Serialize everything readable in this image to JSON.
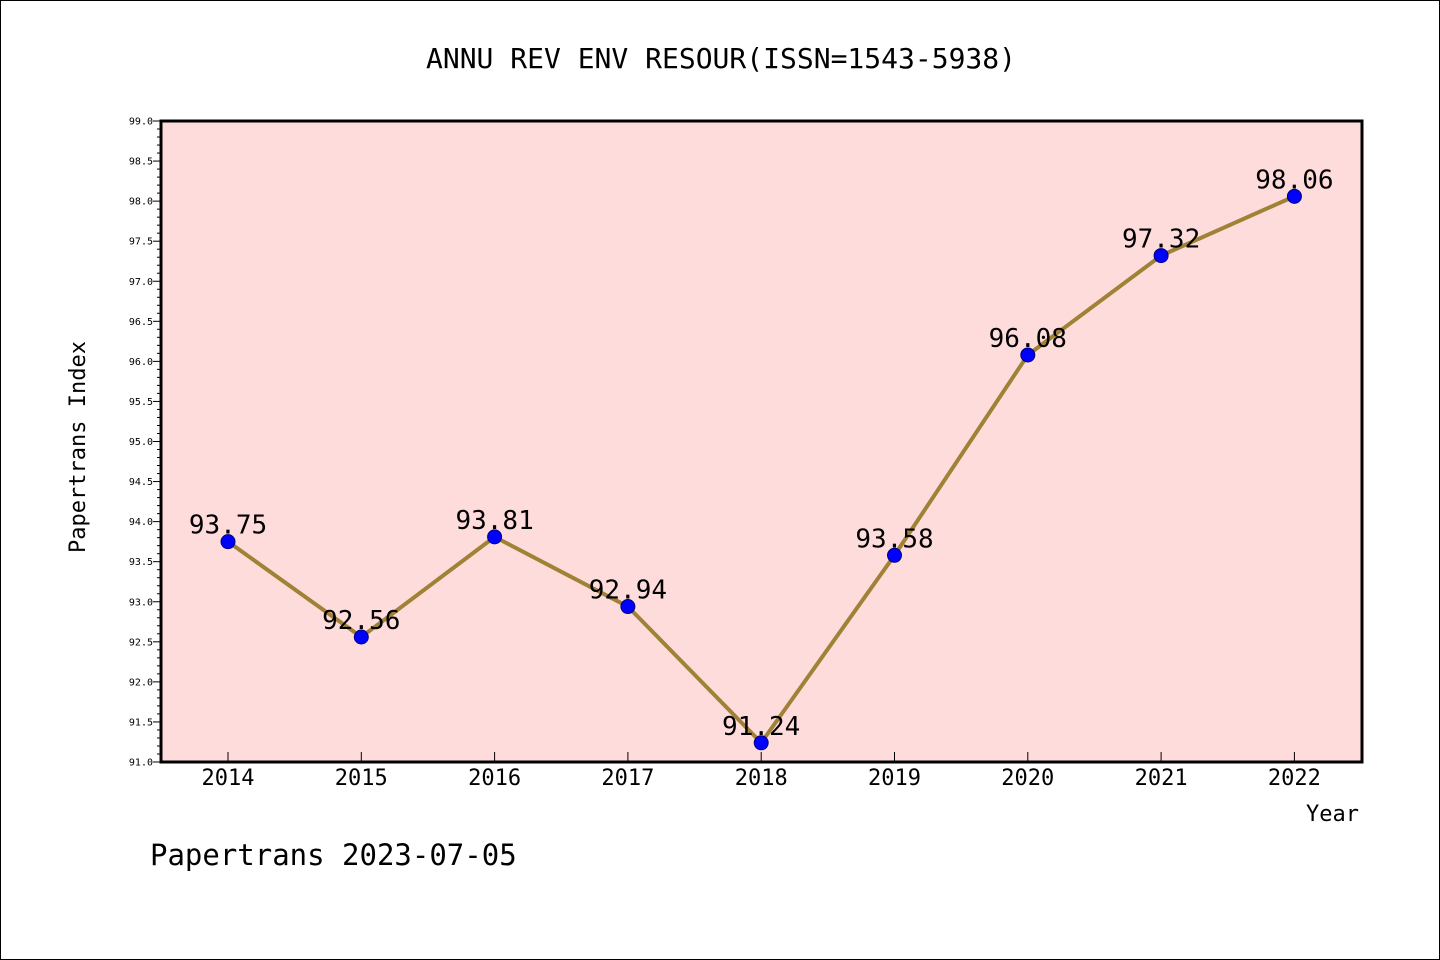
{
  "chart_data": {
    "type": "line",
    "title": "ANNU REV ENV RESOUR(ISSN=1543-5938)",
    "xlabel": "Year",
    "ylabel": "Papertrans Index",
    "categories": [
      "2014",
      "2015",
      "2016",
      "2017",
      "2018",
      "2019",
      "2020",
      "2021",
      "2022"
    ],
    "series": [
      {
        "values": [
          93.75,
          92.56,
          93.81,
          92.94,
          91.24,
          93.58,
          96.08,
          97.32,
          98.06
        ],
        "labels": [
          "93.75",
          "92.56",
          "93.81",
          "92.94",
          "91.24",
          "93.58",
          "96.08",
          "97.32",
          "98.06"
        ]
      }
    ],
    "ylim": [
      91.0,
      99.0
    ],
    "y_ticks": [
      "91.0",
      "91.5",
      "92.0",
      "92.5",
      "93.0",
      "93.5",
      "94.0",
      "94.5",
      "95.0",
      "95.5",
      "96.0",
      "96.5",
      "97.0",
      "97.5",
      "98.0",
      "98.5",
      "99.0"
    ],
    "grid": false,
    "legend": "none",
    "colors": {
      "plot_background": "#ffdcdc",
      "line": "#a08236",
      "marker_fill": "#0000ff",
      "marker_stroke": "#00007a"
    }
  },
  "footer": {
    "text": "Papertrans 2023-07-05"
  }
}
